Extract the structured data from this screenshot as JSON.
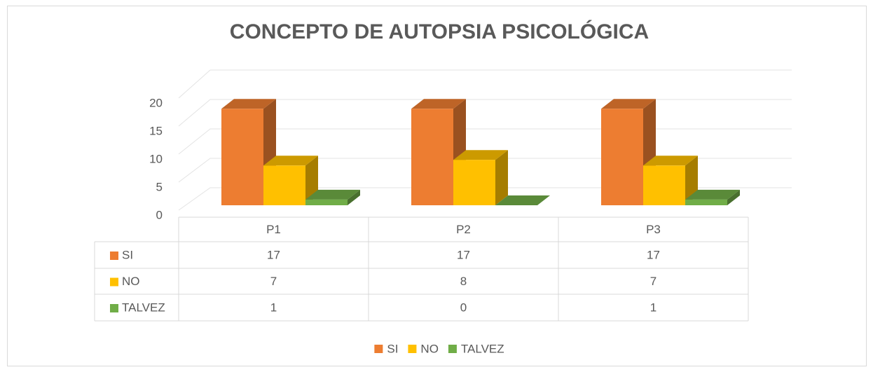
{
  "chart_data": {
    "type": "bar3d",
    "title": "CONCEPTO DE AUTOPSIA PSICOLÓGICA",
    "categories": [
      "P1",
      "P2",
      "P3"
    ],
    "series": [
      {
        "name": "SI",
        "color": "#ed7d31",
        "values": [
          17,
          17,
          17
        ]
      },
      {
        "name": "NO",
        "color": "#ffc000",
        "values": [
          7,
          8,
          7
        ]
      },
      {
        "name": "TALVEZ",
        "color": "#70ad47",
        "values": [
          1,
          0,
          1
        ]
      }
    ],
    "ylim": [
      0,
      20
    ],
    "yticks": [
      0,
      5,
      10,
      15,
      20
    ],
    "grid": true,
    "legend": "bottom",
    "data_table": true
  }
}
